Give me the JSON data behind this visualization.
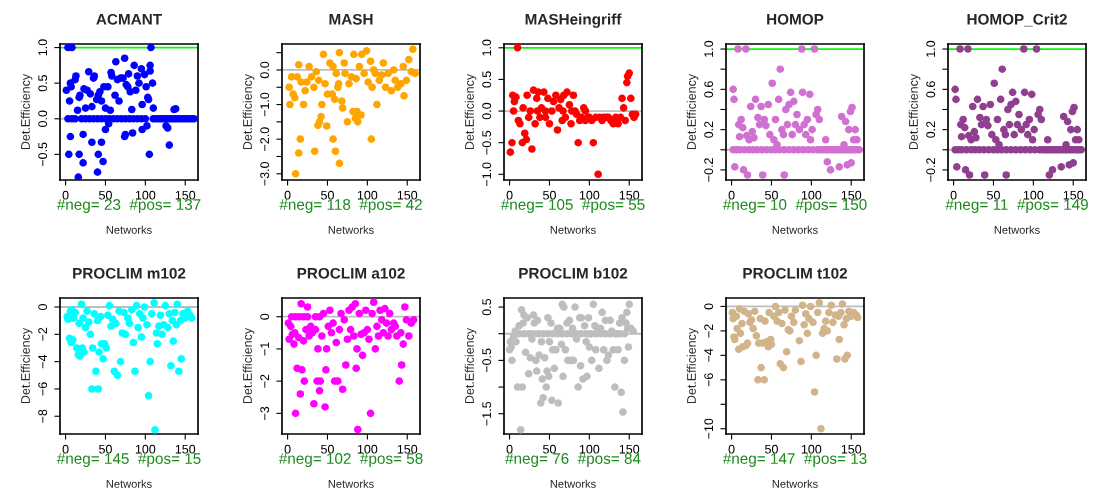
{
  "chart_data": [
    {
      "type": "scatter",
      "title": "ACMANT",
      "xlabel": "Networks",
      "ylabel": "Det.Efficiency",
      "marker": "circle",
      "grid": false,
      "xlim": [
        -7,
        166
      ],
      "xticks": [
        0,
        50,
        100,
        150
      ],
      "ylim": [
        -0.86,
        1.05
      ],
      "yticks": [
        {
          "value": -0.5,
          "label": "−0.5"
        },
        {
          "value": 0,
          "label": "0.0"
        },
        {
          "value": 0.5,
          "label": "0.5"
        },
        {
          "value": 1,
          "label": "1.0"
        }
      ],
      "ref_lines": [
        {
          "axis": "y",
          "value": 0,
          "color": "#bebebe"
        },
        {
          "axis": "y",
          "value": 1,
          "color": "#00ff00"
        }
      ],
      "annotations": [
        "#neg= 23  #pos= 137"
      ],
      "series": [
        {
          "color": "#0000ff",
          "x": [
            3,
            8,
            107,
            3,
            8,
            12,
            20,
            25,
            30,
            35,
            40,
            45,
            50,
            55,
            60,
            65,
            70,
            75,
            80,
            85,
            90,
            95,
            100,
            110,
            113,
            116,
            119,
            122,
            125,
            128,
            131,
            134,
            137,
            140,
            143,
            146,
            149,
            152,
            155,
            158,
            161,
            1,
            5,
            6,
            7,
            12,
            13,
            15,
            17,
            18,
            23,
            25,
            27,
            29,
            31,
            33,
            35,
            36,
            39,
            41,
            43,
            45,
            48,
            50,
            53,
            56,
            57,
            58,
            62,
            63,
            65,
            67,
            69,
            72,
            74,
            76,
            78,
            79,
            81,
            83,
            86,
            88,
            90,
            92,
            95,
            96,
            99,
            101,
            103,
            104,
            106,
            106,
            109,
            110,
            136,
            138,
            4,
            6,
            16,
            17,
            22,
            22,
            33,
            40,
            41,
            45,
            47,
            50,
            54,
            74,
            75,
            84,
            96,
            102,
            105,
            126,
            128,
            130
          ],
          "values": [
            1,
            1,
            1,
            0,
            0,
            0,
            0,
            0,
            0,
            0,
            0,
            0,
            0,
            0,
            0,
            0,
            0,
            0,
            0,
            0,
            0,
            0,
            0,
            0,
            0,
            0,
            0,
            0,
            0,
            0,
            0,
            0,
            0,
            0,
            0,
            0,
            0,
            0,
            0,
            0,
            0,
            0.4,
            0.25,
            0.5,
            0.45,
            0.55,
            0.6,
            0.12,
            0.3,
            0.33,
            0.42,
            0.15,
            0.4,
            0.66,
            0.35,
            0.17,
            0.57,
            0.6,
            0.27,
            0.33,
            0.38,
            0.25,
            0.45,
            0.15,
            0.45,
            0.12,
            0.65,
            0.6,
            0.33,
            0.8,
            0.55,
            0.25,
            0.57,
            0.57,
            0.85,
            0.48,
            0.45,
            0.63,
            0.38,
            0.13,
            0.75,
            0.4,
            0.6,
            0.5,
            0.7,
            0.2,
            0.62,
            0.45,
            0.3,
            0.27,
            0.75,
            0.67,
            0.5,
            0.15,
            0.13,
            0.14,
            -0.5,
            -0.25,
            -0.82,
            -0.5,
            -0.62,
            -0.22,
            -0.33,
            -0.75,
            -0.5,
            -0.33,
            -0.6,
            -0.15,
            -0.07,
            -0.25,
            -0.22,
            -0.2,
            -0.15,
            -0.1,
            -0.5,
            -0.1,
            -0.13,
            -0.37
          ]
        }
      ]
    },
    {
      "type": "scatter",
      "title": "MASH",
      "xlabel": "Networks",
      "ylabel": "Det.Efficiency",
      "marker": "circle",
      "grid": false,
      "xlim": [
        -7,
        166
      ],
      "xticks": [
        0,
        50,
        100,
        150
      ],
      "ylim": [
        -3.18,
        0.75
      ],
      "yticks": [
        {
          "value": -3,
          "label": "−3.0"
        },
        {
          "value": -2.5,
          "label": null
        },
        {
          "value": -2,
          "label": "−2.0"
        },
        {
          "value": -1.5,
          "label": null
        },
        {
          "value": -1,
          "label": "−1.0"
        },
        {
          "value": -0.5,
          "label": null
        },
        {
          "value": 0,
          "label": "0.0"
        },
        {
          "value": 0.5,
          "label": null
        }
      ],
      "ref_lines": [
        {
          "axis": "y",
          "value": 0,
          "color": "#bebebe"
        }
      ],
      "annotations": [
        "#neg= 118  #pos= 42"
      ],
      "series": [
        {
          "color": "#ffa500",
          "x": [
            10,
            14,
            16,
            34,
            38,
            40,
            42,
            43,
            49,
            57,
            60,
            65,
            56,
            59,
            63,
            65,
            69,
            72,
            75,
            82,
            85,
            87,
            88,
            92,
            105,
            112,
            2,
            3,
            5,
            7,
            9,
            12,
            14,
            17,
            20,
            22,
            24,
            27,
            30,
            33,
            36,
            39,
            45,
            47,
            50,
            53,
            57,
            61,
            64,
            68,
            71,
            77,
            80,
            83,
            86,
            90,
            93,
            96,
            99,
            101,
            104,
            106,
            108,
            110,
            115,
            118,
            120,
            123,
            126,
            130,
            133,
            135,
            138,
            142,
            145,
            146,
            149,
            152,
            155,
            157,
            160
          ],
          "values": [
            -3,
            -2.4,
            -2,
            -2.35,
            -1.6,
            -1.5,
            -1.35,
            -1.0,
            -1.62,
            -2.0,
            -2.35,
            -2.7,
            -0.7,
            -0.85,
            -0.5,
            0.5,
            -1.1,
            -0.1,
            -1.5,
            -1.2,
            -1.4,
            -1.2,
            -1.5,
            -1.3,
            -2.0,
            -1.0,
            -0.5,
            -1.0,
            -0.2,
            -0.7,
            -0.8,
            -0.2,
            0.15,
            -0.35,
            -1.0,
            -0.6,
            -0.35,
            0.1,
            -0.2,
            -0.5,
            -0.05,
            -0.3,
            0.45,
            -0.4,
            -0.7,
            0.2,
            0.1,
            -0.1,
            -0.4,
            -0.9,
            0.2,
            -0.4,
            -0.2,
            0.45,
            -0.25,
            0.1,
            0.45,
            -0.1,
            0.55,
            -0.35,
            0.25,
            -0.5,
            0.0,
            -0.1,
            -0.3,
            -0.15,
            0.2,
            -0.5,
            -0.1,
            -0.6,
            0.0,
            -0.3,
            -0.5,
            -0.4,
            0.1,
            -0.75,
            -0.3,
            0.3,
            -0.05,
            0.6,
            -0.1
          ]
        }
      ]
    },
    {
      "type": "scatter",
      "title": "MASHeingriff",
      "xlabel": "Networks",
      "ylabel": "Det.Efficiency",
      "marker": "circle",
      "grid": false,
      "xlim": [
        -7,
        166
      ],
      "xticks": [
        0,
        50,
        100,
        150
      ],
      "ylim": [
        -1.09,
        1.06
      ],
      "yticks": [
        {
          "value": -1,
          "label": "−1.0"
        },
        {
          "value": -0.5,
          "label": "−0.5"
        },
        {
          "value": 0,
          "label": "0.0"
        },
        {
          "value": 0.5,
          "label": "0.5"
        },
        {
          "value": 1,
          "label": "1.0"
        }
      ],
      "ref_lines": [
        {
          "axis": "y",
          "value": 0,
          "color": "#bebebe"
        },
        {
          "axis": "y",
          "value": 1,
          "color": "#00ff00"
        }
      ],
      "annotations": [
        "#neg= 105  #pos= 55"
      ],
      "series": [
        {
          "color": "#ff0000",
          "x": [
            1,
            3,
            4,
            6,
            8,
            10,
            11,
            13,
            16,
            17,
            19,
            21,
            22,
            24,
            26,
            28,
            30,
            32,
            34,
            36,
            38,
            40,
            43,
            45,
            48,
            50,
            53,
            55,
            58,
            60,
            62,
            64,
            66,
            68,
            70,
            72,
            75,
            77,
            80,
            82,
            84,
            86,
            88,
            90,
            93,
            95,
            98,
            100,
            103,
            105,
            108,
            111,
            113,
            116,
            118,
            121,
            124,
            127,
            130,
            133,
            136,
            139,
            141,
            143,
            145,
            147,
            148,
            150,
            152,
            154,
            156,
            158,
            5,
            35,
            45,
            67,
            78,
            95
          ],
          "values": [
            -0.65,
            -0.5,
            0.25,
            0.15,
            0.22,
            1.0,
            -0.15,
            -0.2,
            -0.5,
            0.05,
            -0.35,
            -0.45,
            0.25,
            -0.1,
            0.0,
            -0.6,
            0.33,
            -0.2,
            0.2,
            0.3,
            -0.1,
            0.05,
            0.3,
            -0.1,
            0.2,
            -0.2,
            0.0,
            0.15,
            0.25,
            -0.3,
            0.05,
            0.18,
            -0.15,
            0.25,
            -0.1,
            0.3,
            0.1,
            -0.2,
            0.25,
            0.0,
            -0.05,
            -0.5,
            -0.15,
            -0.1,
            0.05,
            -0.15,
            -0.1,
            -0.1,
            -0.15,
            -0.5,
            -0.1,
            -1.0,
            -0.1,
            -0.15,
            -0.1,
            -0.1,
            -0.1,
            -0.15,
            -0.2,
            -0.1,
            -0.2,
            -0.1,
            0.2,
            0.05,
            -0.15,
            0.45,
            0.55,
            0.6,
            0.2,
            -0.05,
            -0.1,
            -0.05,
            0,
            0,
            0,
            0,
            0,
            0
          ]
        }
      ]
    },
    {
      "type": "scatter",
      "title": "HOMOP",
      "xlabel": "Networks",
      "ylabel": "Det.Efficiency",
      "marker": "circle",
      "grid": false,
      "xlim": [
        -7,
        166
      ],
      "xticks": [
        0,
        50,
        100,
        150
      ],
      "ylim": [
        -0.3,
        1.05
      ],
      "yticks": [
        {
          "value": -0.2,
          "label": "−0.2"
        },
        {
          "value": 0,
          "label": null
        },
        {
          "value": 0.2,
          "label": "0.2"
        },
        {
          "value": 0.4,
          "label": null
        },
        {
          "value": 0.6,
          "label": "0.6"
        },
        {
          "value": 0.8,
          "label": null
        },
        {
          "value": 1,
          "label": "1.0"
        }
      ],
      "ref_lines": [
        {
          "axis": "y",
          "value": 0,
          "color": "#bebebe"
        },
        {
          "axis": "y",
          "value": 1,
          "color": "#00ff00"
        }
      ],
      "annotations": [
        "#neg= 10  #pos= 150"
      ],
      "series": [
        {
          "color": "#d070d0",
          "x": [
            2,
            3,
            4,
            8,
            9,
            10,
            12,
            14,
            15,
            18,
            19,
            20,
            22,
            24,
            26,
            28,
            30,
            33,
            35,
            37,
            39,
            41,
            43,
            46,
            48,
            51,
            53,
            55,
            57,
            59,
            61,
            63,
            65,
            66,
            68,
            70,
            72,
            74,
            76,
            78,
            80,
            82,
            85,
            88,
            89,
            91,
            93,
            95,
            98,
            99,
            101,
            104,
            106,
            108,
            110,
            118,
            120,
            124,
            135,
            138,
            141,
            143,
            145,
            147,
            149,
            150,
            151,
            153,
            155,
            157,
            2,
            6,
            10,
            16,
            22,
            27,
            32,
            38,
            44,
            50,
            55,
            60,
            66,
            72,
            78,
            84,
            90,
            96,
            102,
            108,
            112,
            115,
            118,
            121,
            124,
            127,
            130,
            133,
            136,
            139,
            142,
            145,
            148,
            151,
            154,
            157,
            160
          ],
          "values": [
            0.6,
            0.5,
            -0.17,
            1.0,
            0.25,
            0.13,
            0.3,
            0.22,
            -0.2,
            1.0,
            0.14,
            -0.25,
            0.1,
            0.43,
            0.18,
            0.12,
            0.5,
            0.32,
            0.25,
            0.43,
            -0.25,
            0.3,
            0.24,
            0.45,
            0.15,
            0.66,
            0.1,
            0.3,
            0.05,
            0.5,
            0.8,
            0.2,
            0.15,
            -0.25,
            0.4,
            0.25,
            0.45,
            0.57,
            0.15,
            0.48,
            0.25,
            0.35,
            0.2,
            1.0,
            0.57,
            0.25,
            0.15,
            0.3,
            0.55,
            0.1,
            0.2,
            1.0,
            0.35,
            0.4,
            0.3,
            0.1,
            -0.12,
            -0.2,
            -0.17,
            0.33,
            0.05,
            0.28,
            -0.15,
            0.2,
            0.38,
            -0.13,
            0.42,
            0.1,
            0.2,
            0.1,
            0,
            0,
            0,
            0,
            0,
            0,
            0,
            0,
            0,
            0,
            0,
            0,
            0,
            0,
            0,
            0,
            0,
            0,
            0,
            0,
            0,
            0,
            0,
            0,
            0,
            0,
            0,
            0,
            0,
            0,
            0,
            0,
            0,
            0,
            0,
            0,
            0
          ]
        }
      ]
    },
    {
      "type": "scatter",
      "title": "HOMOP_Crit2",
      "xlabel": "Networks",
      "ylabel": "Det.Efficiency",
      "marker": "circle",
      "grid": false,
      "xlim": [
        -7,
        166
      ],
      "xticks": [
        0,
        50,
        100,
        150
      ],
      "ylim": [
        -0.3,
        1.05
      ],
      "yticks": [
        {
          "value": -0.2,
          "label": "−0.2"
        },
        {
          "value": 0,
          "label": null
        },
        {
          "value": 0.2,
          "label": "0.2"
        },
        {
          "value": 0.4,
          "label": null
        },
        {
          "value": 0.6,
          "label": "0.6"
        },
        {
          "value": 0.8,
          "label": null
        },
        {
          "value": 1,
          "label": "1.0"
        }
      ],
      "ref_lines": [
        {
          "axis": "y",
          "value": 0,
          "color": "#bebebe"
        },
        {
          "axis": "y",
          "value": 1,
          "color": "#00ff00"
        }
      ],
      "annotations": [
        "#neg= 11  #pos= 149"
      ],
      "series": [
        {
          "color": "#8e3f8e",
          "x": [
            2,
            3,
            4,
            8,
            9,
            10,
            12,
            14,
            15,
            18,
            19,
            20,
            22,
            24,
            26,
            28,
            30,
            33,
            35,
            37,
            39,
            41,
            43,
            46,
            48,
            51,
            53,
            55,
            57,
            59,
            61,
            63,
            65,
            66,
            68,
            70,
            72,
            74,
            76,
            78,
            80,
            82,
            85,
            88,
            89,
            91,
            93,
            95,
            98,
            99,
            101,
            104,
            106,
            108,
            110,
            118,
            120,
            124,
            135,
            138,
            141,
            143,
            145,
            147,
            149,
            150,
            151,
            153,
            155,
            157,
            2,
            6,
            10,
            16,
            22,
            27,
            32,
            38,
            44,
            50,
            55,
            60,
            66,
            72,
            78,
            84,
            90,
            96,
            102,
            108,
            112,
            115,
            118,
            121,
            124,
            127,
            130,
            133,
            136,
            139,
            142,
            145,
            148,
            151,
            154,
            157,
            160
          ],
          "values": [
            0.6,
            0.5,
            -0.17,
            1.0,
            0.25,
            0.13,
            0.3,
            0.22,
            -0.2,
            1.0,
            0.14,
            -0.25,
            0.1,
            0.43,
            0.18,
            0.12,
            0.5,
            0.32,
            0.25,
            0.43,
            -0.25,
            0.3,
            0.24,
            0.45,
            0.15,
            0.66,
            0.1,
            0.3,
            0.05,
            0.5,
            0.8,
            0.2,
            0.15,
            -0.25,
            0.4,
            0.25,
            0.45,
            0.57,
            0.15,
            0.48,
            0.25,
            0.35,
            0.2,
            1.0,
            0.57,
            0.25,
            0.15,
            0.3,
            0.55,
            0.1,
            0.2,
            1.0,
            0.35,
            0.4,
            0.3,
            0.1,
            -0.25,
            -0.2,
            -0.17,
            0.33,
            0.05,
            0.28,
            -0.15,
            0.2,
            0.38,
            -0.13,
            0.42,
            0.1,
            0.2,
            0.1,
            0,
            0,
            0,
            0,
            0,
            0,
            0,
            0,
            0,
            0,
            0,
            0,
            0,
            0,
            0,
            0,
            0,
            0,
            0,
            0,
            0,
            0,
            0,
            0,
            0,
            0,
            0,
            0,
            0,
            0,
            0,
            0,
            0,
            0,
            0,
            0,
            0
          ]
        }
      ]
    },
    {
      "type": "scatter",
      "title": "PROCLIM m102",
      "xlabel": "Networks",
      "ylabel": "Det.Efficiency",
      "marker": "circle",
      "grid": false,
      "xlim": [
        -7,
        166
      ],
      "xticks": [
        0,
        50,
        100,
        150
      ],
      "ylim": [
        -9.3,
        0.66
      ],
      "yticks": [
        {
          "value": -8,
          "label": "−8"
        },
        {
          "value": -6,
          "label": "−6"
        },
        {
          "value": -4,
          "label": "−4"
        },
        {
          "value": -2,
          "label": "−2"
        },
        0
      ],
      "ref_lines": [
        {
          "axis": "y",
          "value": 0,
          "color": "#bebebe"
        }
      ],
      "annotations": [
        "#neg= 145  #pos= 15"
      ],
      "series": [
        {
          "color": "#00ffff",
          "x": [
            2,
            3,
            5,
            6,
            7,
            8,
            9,
            10,
            12,
            14,
            16,
            17,
            18,
            20,
            21,
            22,
            23,
            25,
            27,
            29,
            31,
            33,
            34,
            36,
            38,
            40,
            41,
            42,
            44,
            45,
            47,
            49,
            51,
            53,
            55,
            57,
            59,
            61,
            63,
            65,
            67,
            69,
            71,
            73,
            75,
            78,
            80,
            83,
            85,
            87,
            89,
            91,
            93,
            95,
            97,
            99,
            102,
            104,
            106,
            108,
            111,
            112,
            114,
            115,
            117,
            119,
            121,
            123,
            125,
            128,
            130,
            132,
            134,
            135,
            137,
            139,
            140,
            142,
            144,
            145,
            147,
            150,
            153,
            156,
            158
          ],
          "values": [
            -0.7,
            -0.9,
            -2.3,
            -0.3,
            -2.6,
            -0.2,
            -2.4,
            -0.8,
            -0.4,
            -3.0,
            -3.5,
            -1.2,
            -3.6,
            0.2,
            -3.0,
            -0.8,
            -3.3,
            -1.5,
            -0.3,
            -1.1,
            -2.0,
            -6.0,
            -3.0,
            -0.5,
            -4.7,
            -1.0,
            -6.0,
            -3.3,
            -0.7,
            -2.7,
            -3.8,
            -2.7,
            -3.0,
            -0.6,
            0.1,
            -1.4,
            -0.9,
            -4.7,
            -1.2,
            -5.0,
            -0.3,
            -4.0,
            -1.9,
            -0.4,
            -2.0,
            -0.8,
            -1.2,
            -0.2,
            -2.6,
            -4.7,
            0.1,
            -1.5,
            -0.5,
            -2.2,
            -0.8,
            0.0,
            -1.3,
            -6.5,
            -4.0,
            -0.5,
            0.3,
            -9.0,
            -1.9,
            -2.7,
            -1.4,
            -0.6,
            -2.0,
            -1.3,
            0.1,
            -1.5,
            -0.5,
            -4.3,
            -1.0,
            -2.5,
            -0.4,
            -1.3,
            0.2,
            -4.7,
            -1.0,
            -3.8,
            -0.5,
            -0.8,
            -0.3,
            -0.6,
            -0.8
          ]
        }
      ]
    },
    {
      "type": "scatter",
      "title": "PROCLIM a102",
      "xlabel": "Networks",
      "ylabel": "Det.Efficiency",
      "marker": "circle",
      "grid": false,
      "xlim": [
        -7,
        166
      ],
      "xticks": [
        0,
        50,
        100,
        150
      ],
      "ylim": [
        -3.64,
        0.58
      ],
      "yticks": [
        {
          "value": -3,
          "label": "−3"
        },
        {
          "value": -2,
          "label": "−2"
        },
        {
          "value": -1,
          "label": "−1"
        },
        0
      ],
      "ref_lines": [
        {
          "axis": "y",
          "value": 0,
          "color": "#bebebe"
        }
      ],
      "annotations": [
        "#neg= 102  #pos= 58"
      ],
      "series": [
        {
          "color": "#ff00ff",
          "x": [
            1,
            2,
            4,
            6,
            8,
            9,
            10,
            12,
            14,
            16,
            17,
            18,
            20,
            21,
            23,
            25,
            27,
            29,
            31,
            33,
            35,
            37,
            38,
            40,
            41,
            43,
            45,
            47,
            48,
            49,
            51,
            53,
            55,
            57,
            59,
            61,
            63,
            65,
            67,
            69,
            71,
            73,
            75,
            77,
            79,
            81,
            83,
            85,
            86,
            87,
            88,
            90,
            92,
            94,
            96,
            98,
            100,
            102,
            104,
            106,
            108,
            110,
            112,
            114,
            116,
            118,
            120,
            122,
            124,
            126,
            128,
            130,
            133,
            135,
            137,
            140,
            142,
            143,
            145,
            147,
            149,
            152,
            155,
            158,
            5,
            10,
            15,
            20,
            25,
            35,
            40
          ],
          "values": [
            -0.2,
            -0.7,
            -0.3,
            -0.55,
            -0.85,
            -0.5,
            -3.0,
            -1.6,
            -0.65,
            -2.4,
            0.4,
            -1.65,
            -0.75,
            -2.0,
            -0.4,
            0.3,
            -0.6,
            -0.3,
            -0.5,
            -2.7,
            -0.4,
            -2.0,
            -1.0,
            -2.3,
            -2.0,
            -0.6,
            0.1,
            -2.8,
            -1.65,
            -1.0,
            -0.3,
            0.2,
            -0.5,
            -0.2,
            -2.0,
            -0.8,
            -2.0,
            -0.4,
            0.1,
            -2.25,
            -0.1,
            -1.5,
            -0.7,
            0.2,
            -0.4,
            0.3,
            -0.6,
            0.4,
            -1.6,
            -1.0,
            -3.5,
            0.1,
            -0.55,
            -1.2,
            -0.5,
            0.2,
            -0.4,
            -0.7,
            -3.0,
            0.1,
            0.45,
            -1.0,
            -0.3,
            -0.6,
            0.2,
            -0.1,
            -0.5,
            0.25,
            -0.2,
            -0.6,
            0.1,
            -0.4,
            -0.2,
            -0.3,
            -0.6,
            -2.0,
            -0.5,
            -1.5,
            -0.85,
            0.3,
            -0.1,
            -0.6,
            -0.2,
            -0.1,
            0,
            0,
            0,
            0,
            0,
            0,
            0
          ]
        }
      ]
    },
    {
      "type": "scatter",
      "title": "PROCLIM b102",
      "xlabel": "Networks",
      "ylabel": "Det.Efficiency",
      "marker": "circle",
      "grid": false,
      "xlim": [
        -7,
        166
      ],
      "xticks": [
        0,
        50,
        100,
        150
      ],
      "ylim": [
        -1.88,
        0.67
      ],
      "yticks": [
        {
          "value": -1.5,
          "label": "−1.5"
        },
        {
          "value": -1,
          "label": null
        },
        {
          "value": -0.5,
          "label": "−0.5"
        },
        {
          "value": 0,
          "label": null
        },
        {
          "value": 0.5,
          "label": "0.5"
        }
      ],
      "ref_lines": [
        {
          "axis": "y",
          "value": 0,
          "color": "#bebebe"
        }
      ],
      "annotations": [
        "#neg= 76  #pos= 84"
      ],
      "series": [
        {
          "color": "#bebebe",
          "x": [
            0,
            1,
            2,
            3,
            5,
            7,
            8,
            10,
            12,
            14,
            15,
            16,
            17,
            18,
            20,
            22,
            24,
            25,
            26,
            28,
            30,
            31,
            33,
            34,
            35,
            37,
            39,
            40,
            41,
            42,
            44,
            46,
            47,
            48,
            49,
            50,
            52,
            53,
            54,
            56,
            58,
            60,
            61,
            63,
            65,
            66,
            67,
            68,
            70,
            72,
            73,
            75,
            77,
            79,
            80,
            82,
            84,
            86,
            88,
            89,
            90,
            92,
            94,
            96,
            97,
            99,
            100,
            101,
            103,
            105,
            107,
            108,
            110,
            112,
            114,
            116,
            118,
            120,
            122,
            124,
            126,
            128,
            130,
            132,
            134,
            136,
            138,
            140,
            141,
            142,
            144,
            146,
            147,
            148,
            149,
            150,
            152,
            155,
            12,
            18,
            24,
            30,
            36,
            42,
            48,
            54,
            60,
            66,
            72,
            78,
            84,
            90,
            96,
            102,
            108,
            114,
            120,
            126,
            132,
            138,
            144
          ],
          "values": [
            -0.3,
            -0.15,
            -0.25,
            -0.5,
            -0.05,
            0.05,
            -0.15,
            -1.0,
            0.15,
            -1.8,
            0.45,
            -1.0,
            0.2,
            0.35,
            -0.35,
            0.3,
            -0.75,
            0.0,
            -0.45,
            -0.1,
            0.35,
            0.2,
            -0.5,
            -0.7,
            0.25,
            -0.4,
            -1.3,
            -0.15,
            -0.85,
            -1.2,
            -0.45,
            -1.0,
            -0.7,
            0.3,
            -0.8,
            -0.15,
            0.2,
            -1.25,
            -0.3,
            -0.65,
            -0.3,
            0.1,
            -1.3,
            0.1,
            -0.2,
            0.55,
            -0.8,
            0.5,
            -0.3,
            0.2,
            -0.5,
            0.25,
            -0.5,
            0.1,
            -0.5,
            0.5,
            -0.1,
            -1.0,
            0.3,
            -0.6,
            0.3,
            -0.85,
            0.15,
            -0.15,
            -0.8,
            0.3,
            -0.25,
            0.0,
            -0.5,
            0.55,
            0.15,
            -0.3,
            0.1,
            -0.65,
            0.1,
            0.4,
            -0.3,
            0.25,
            -0.5,
            -0.4,
            0.25,
            0.05,
            -0.3,
            -1.0,
            0.0,
            -0.3,
            0.2,
            -1.1,
            0.3,
            -1.47,
            -0.5,
            0.2,
            0.4,
            0.1,
            -0.25,
            0.55,
            0.1,
            0.05,
            0,
            0,
            0,
            0,
            0,
            0,
            0,
            0,
            0,
            0,
            0,
            0,
            0,
            0,
            0,
            0,
            0,
            0,
            0,
            0,
            0,
            0,
            0
          ]
        }
      ]
    },
    {
      "type": "scatter",
      "title": "PROCLIM t102",
      "xlabel": "Networks",
      "ylabel": "Det.Efficiency",
      "marker": "circle",
      "grid": false,
      "xlim": [
        -7,
        166
      ],
      "xticks": [
        0,
        50,
        100,
        150
      ],
      "ylim": [
        -10.43,
        0.69
      ],
      "yticks": [
        {
          "value": -10,
          "label": "−10"
        },
        {
          "value": -8,
          "label": null
        },
        {
          "value": -6,
          "label": "−6"
        },
        {
          "value": -4,
          "label": "−4"
        },
        {
          "value": -2,
          "label": "−2"
        },
        0
      ],
      "ref_lines": [
        {
          "axis": "y",
          "value": 0,
          "color": "#bebebe"
        }
      ],
      "annotations": [
        "#neg= 147  #pos= 13"
      ],
      "series": [
        {
          "color": "#d2b48c",
          "x": [
            1,
            2,
            3,
            4,
            6,
            7,
            9,
            10,
            11,
            13,
            14,
            16,
            18,
            20,
            21,
            23,
            25,
            27,
            29,
            31,
            33,
            34,
            36,
            37,
            39,
            41,
            42,
            44,
            46,
            47,
            49,
            50,
            53,
            55,
            57,
            59,
            61,
            63,
            65,
            67,
            69,
            71,
            73,
            75,
            78,
            80,
            85,
            87,
            89,
            91,
            93,
            95,
            97,
            99,
            102,
            104,
            106,
            108,
            110,
            112,
            114,
            116,
            118,
            120,
            122,
            125,
            127,
            130,
            132,
            134,
            135,
            137,
            139,
            141,
            142,
            144,
            145,
            147,
            150,
            153,
            156,
            158
          ],
          "values": [
            -0.5,
            -1.0,
            -2.5,
            -2.7,
            -0.8,
            -1.8,
            -3.5,
            -0.2,
            -2.2,
            -1.4,
            -3.3,
            -0.4,
            -3.2,
            -3.0,
            -0.6,
            -1.3,
            -1.1,
            -1.8,
            -0.4,
            -2.4,
            -6.0,
            -3.0,
            -1.0,
            -5.0,
            -3.0,
            -6.0,
            -1.2,
            -2.9,
            -3.3,
            -0.5,
            -2.7,
            -3.1,
            -0.8,
            0.0,
            -1.2,
            -0.5,
            -4.7,
            -1.4,
            -5.0,
            -0.3,
            -3.7,
            -1.9,
            -2.0,
            -0.8,
            -1.3,
            -0.3,
            -2.8,
            -4.5,
            0.1,
            -1.5,
            -0.6,
            -2.2,
            -1.0,
            0.0,
            -1.3,
            -7.0,
            -4.0,
            -0.5,
            0.3,
            -10.0,
            -2.2,
            -1.8,
            -1.2,
            -2.0,
            -0.5,
            0.1,
            -1.3,
            -0.7,
            -4.3,
            -0.8,
            -2.7,
            -0.5,
            0.2,
            -1.5,
            -4.3,
            -1.0,
            -4.0,
            -0.4,
            -0.8,
            -0.5,
            -0.7,
            -0.9
          ]
        }
      ]
    }
  ]
}
